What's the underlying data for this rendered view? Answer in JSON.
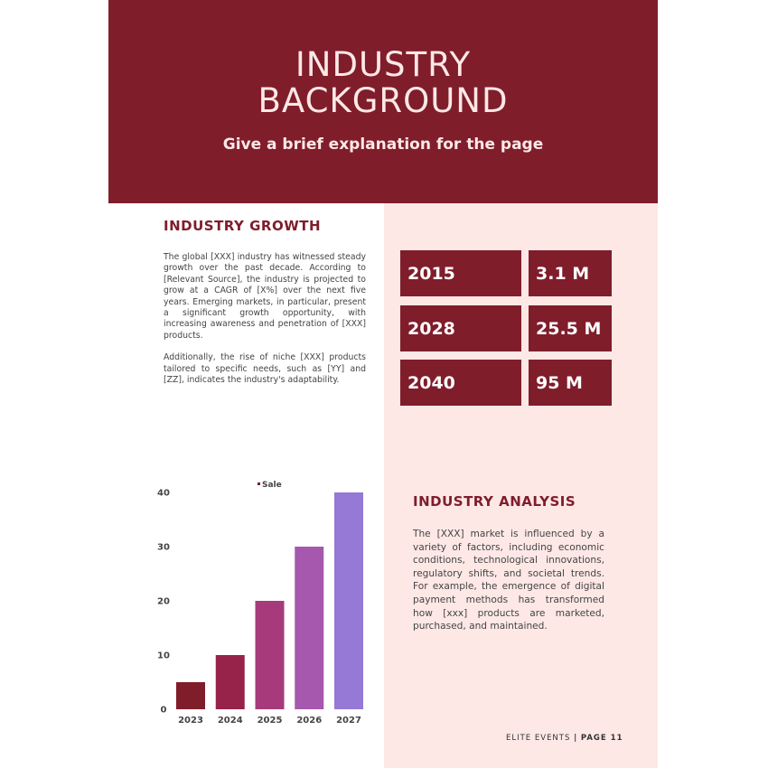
{
  "header": {
    "title_line1": "INDUSTRY",
    "title_line2": "BACKGROUND",
    "subtitle": "Give a brief explanation for the page"
  },
  "growth": {
    "heading": "INDUSTRY GROWTH",
    "paragraphs": [
      "The global [XXX] industry has witnessed steady growth over the past decade. According to [Relevant Source], the industry is projected to grow at a CAGR of [X%] over the next five years. Emerging markets, in particular, present a significant growth opportunity, with increasing awareness and penetration of [XXX] products.",
      "Additionally, the rise of niche [XXX] products tailored to specific needs, such as [YY] and [ZZ], indicates the industry's adaptability."
    ]
  },
  "stats": [
    {
      "year": "2015",
      "value": "3.1 M"
    },
    {
      "year": "2028",
      "value": "25.5 M"
    },
    {
      "year": "2040",
      "value": "95 M"
    }
  ],
  "analysis": {
    "heading": "INDUSTRY ANALYSIS",
    "text": "The [XXX] market is influenced by a variety of factors, including economic conditions, technological innovations, regulatory shifts, and societal trends. For example, the emergence of digital payment methods has transformed how [xxx] products are marketed, purchased, and maintained."
  },
  "footer": {
    "brand": "ELITE EVENTS",
    "separator": "|",
    "page": "PAGE 11"
  },
  "colors": {
    "brand": "#7f1d2b",
    "panel": "#fde8e6"
  },
  "chart_data": {
    "type": "bar",
    "categories": [
      "2023",
      "2024",
      "2025",
      "2026",
      "2027"
    ],
    "series": [
      {
        "name": "Sale",
        "values": [
          5,
          10,
          20,
          30,
          40
        ]
      }
    ],
    "bar_colors": [
      "#7f1d2b",
      "#97234a",
      "#a63a7a",
      "#a558ad",
      "#9678d6"
    ],
    "yticks": [
      "0",
      "10",
      "20",
      "30",
      "40"
    ],
    "ylim": [
      0,
      40
    ],
    "grid": false,
    "legend": "top"
  }
}
